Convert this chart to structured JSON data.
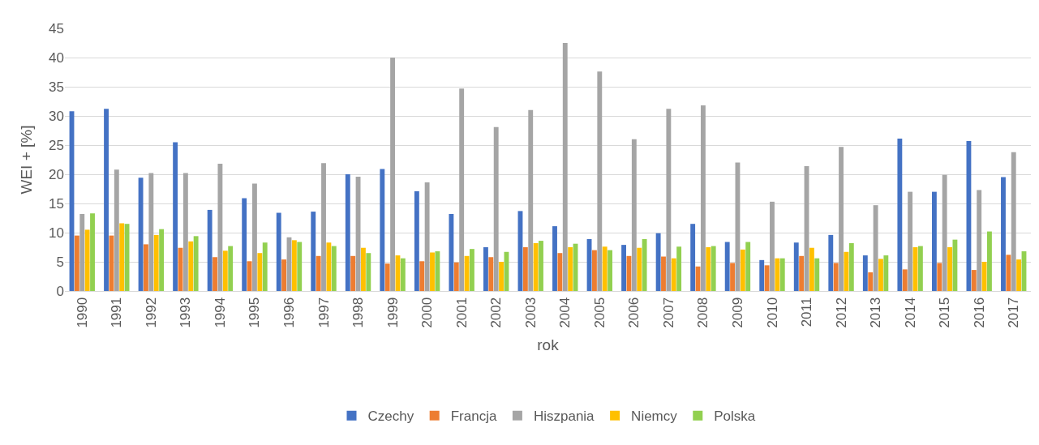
{
  "chart_data": {
    "type": "bar",
    "xlabel": "rok",
    "ylabel": "WEI + [%]",
    "categories": [
      "1990",
      "1991",
      "1992",
      "1993",
      "1994",
      "1995",
      "1996",
      "1997",
      "1998",
      "1999",
      "2000",
      "2001",
      "2002",
      "2003",
      "2004",
      "2005",
      "2006",
      "2007",
      "2008",
      "2009",
      "2010",
      "2011",
      "2012",
      "2013",
      "2014",
      "2015",
      "2016",
      "2017"
    ],
    "series": [
      {
        "name": "Czechy",
        "color": "#4472c4",
        "values": [
          30.8,
          31.2,
          19.4,
          25.5,
          13.9,
          15.9,
          13.4,
          13.6,
          20.0,
          20.9,
          17.1,
          13.2,
          7.5,
          13.7,
          11.1,
          8.9,
          7.9,
          9.9,
          11.5,
          8.4,
          5.3,
          8.3,
          9.6,
          6.1,
          26.1,
          17.0,
          25.7,
          19.5
        ]
      },
      {
        "name": "Francja",
        "color": "#ed7d31",
        "values": [
          9.5,
          9.5,
          8.0,
          7.4,
          5.8,
          5.1,
          5.4,
          6.0,
          6.0,
          4.7,
          5.1,
          4.9,
          5.8,
          7.5,
          6.5,
          7.0,
          6.0,
          5.9,
          4.2,
          4.8,
          4.4,
          6.0,
          4.8,
          3.2,
          3.7,
          4.8,
          3.6,
          6.2
        ]
      },
      {
        "name": "Hiszpania",
        "color": "#a5a5a5",
        "values": [
          13.2,
          20.8,
          20.2,
          20.2,
          21.8,
          18.4,
          9.2,
          21.9,
          19.6,
          40.0,
          18.6,
          34.7,
          28.1,
          31.0,
          42.5,
          37.6,
          26.0,
          31.2,
          31.8,
          22.0,
          15.3,
          21.4,
          24.7,
          14.7,
          17.0,
          19.9,
          17.3,
          23.8
        ]
      },
      {
        "name": "Niemcy",
        "color": "#ffc000",
        "values": [
          10.5,
          11.6,
          9.6,
          8.5,
          6.9,
          6.5,
          8.7,
          8.3,
          7.4,
          6.1,
          6.6,
          6.0,
          5.0,
          8.2,
          7.5,
          7.6,
          7.4,
          5.6,
          7.5,
          7.1,
          5.6,
          7.4,
          6.7,
          5.5,
          7.5,
          7.5,
          5.0,
          5.4
        ]
      },
      {
        "name": "Polska",
        "color": "#92d050",
        "values": [
          13.3,
          11.5,
          10.6,
          9.4,
          7.7,
          8.3,
          8.4,
          7.7,
          6.5,
          5.6,
          6.8,
          7.2,
          6.7,
          8.6,
          8.1,
          7.0,
          8.9,
          7.6,
          7.7,
          8.4,
          5.6,
          5.6,
          8.2,
          6.1,
          7.7,
          8.8,
          10.2,
          6.8
        ]
      }
    ],
    "ylim": [
      0,
      45
    ],
    "yticks": [
      0,
      5,
      10,
      15,
      20,
      25,
      30,
      35,
      40,
      45
    ],
    "grid": "y",
    "legend": "bottom"
  }
}
